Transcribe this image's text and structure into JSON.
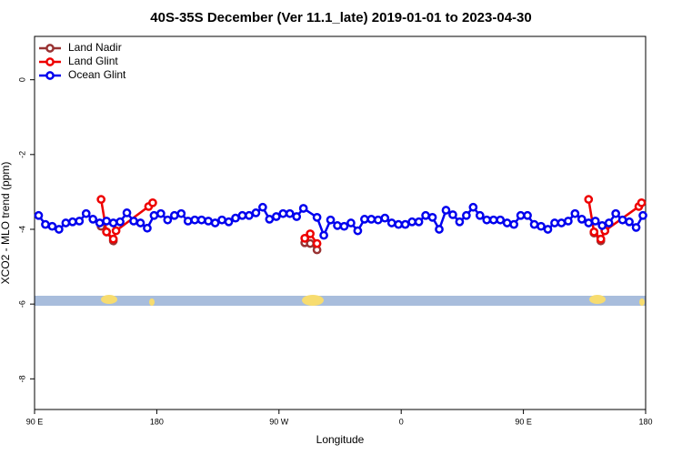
{
  "chart_data": {
    "type": "line",
    "title": "40S-35S December (Ver 11.1_late)   2019-01-01 to 2023-04-30",
    "x_label": "Longitude",
    "y_label": "XCO2 - MLO trend (ppm)",
    "xlim": [
      90,
      540
    ],
    "ylim": [
      -8.82,
      1.16
    ],
    "xticks": [
      {
        "value": 90,
        "label": "90 E"
      },
      {
        "value": 180,
        "label": "180"
      },
      {
        "value": 270,
        "label": "90 W"
      },
      {
        "value": 360,
        "label": "0"
      },
      {
        "value": 450,
        "label": "90 E"
      },
      {
        "value": 540,
        "label": "180"
      }
    ],
    "yticks": [
      0,
      -2,
      -4,
      -6,
      -8
    ],
    "legend": "top-left",
    "series": [
      {
        "name": "Land Nadir",
        "color": "#993333",
        "x": [
          139,
          143,
          148,
          289,
          293,
          298,
          502,
          507,
          510
        ],
        "values": [
          -3.92,
          -4.07,
          -4.31,
          -4.36,
          -4.38,
          -4.55,
          -4.1,
          -4.31,
          -4.04
        ]
      },
      {
        "name": "Land Glint",
        "color": "#ee0000",
        "x": [
          139,
          143,
          148,
          150,
          174,
          177,
          289,
          293,
          298,
          498,
          502,
          507,
          510,
          535,
          537
        ],
        "values": [
          -3.2,
          -4.07,
          -4.26,
          -4.04,
          -3.39,
          -3.29,
          -4.24,
          -4.12,
          -4.38,
          -3.2,
          -4.07,
          -4.26,
          -4.04,
          -3.39,
          -3.29
        ]
      },
      {
        "name": "Ocean Glint",
        "color": "#0000ee",
        "x": [
          93,
          98,
          103,
          108,
          113,
          118,
          123,
          128,
          133,
          138,
          143,
          148,
          153,
          158,
          163,
          168,
          173,
          178,
          183,
          188,
          193,
          198,
          203,
          208,
          213,
          218,
          223,
          228,
          233,
          238,
          243,
          248,
          253,
          258,
          263,
          268,
          273,
          278,
          283,
          288,
          298,
          303,
          308,
          313,
          318,
          323,
          328,
          333,
          338,
          343,
          348,
          353,
          358,
          363,
          368,
          373,
          378,
          383,
          388,
          393,
          398,
          403,
          408,
          413,
          418,
          423,
          428,
          433,
          438,
          443,
          448,
          453,
          458,
          463,
          468,
          473,
          478,
          483,
          488,
          493,
          498,
          503,
          508,
          513,
          518,
          523,
          528,
          533,
          538
        ],
        "values": [
          -3.63,
          -3.87,
          -3.92,
          -4.0,
          -3.83,
          -3.8,
          -3.78,
          -3.58,
          -3.73,
          -3.83,
          -3.78,
          -3.83,
          -3.8,
          -3.56,
          -3.78,
          -3.83,
          -3.97,
          -3.63,
          -3.58,
          -3.75,
          -3.63,
          -3.58,
          -3.78,
          -3.75,
          -3.75,
          -3.78,
          -3.83,
          -3.75,
          -3.8,
          -3.7,
          -3.63,
          -3.63,
          -3.56,
          -3.41,
          -3.73,
          -3.66,
          -3.58,
          -3.58,
          -3.66,
          -3.44,
          -3.68,
          -4.16,
          -3.75,
          -3.9,
          -3.92,
          -3.83,
          -4.04,
          -3.73,
          -3.73,
          -3.75,
          -3.7,
          -3.83,
          -3.87,
          -3.87,
          -3.8,
          -3.8,
          -3.63,
          -3.68,
          -4.0,
          -3.49,
          -3.61,
          -3.8,
          -3.63,
          -3.41,
          -3.63,
          -3.75,
          -3.75,
          -3.75,
          -3.83,
          -3.87,
          -3.63,
          -3.63,
          -3.87,
          -3.92,
          -4.0,
          -3.83,
          -3.83,
          -3.78,
          -3.58,
          -3.73,
          -3.83,
          -3.78,
          -3.9,
          -3.83,
          -3.58,
          -3.75,
          -3.8,
          -3.95,
          -3.63
        ]
      }
    ]
  }
}
